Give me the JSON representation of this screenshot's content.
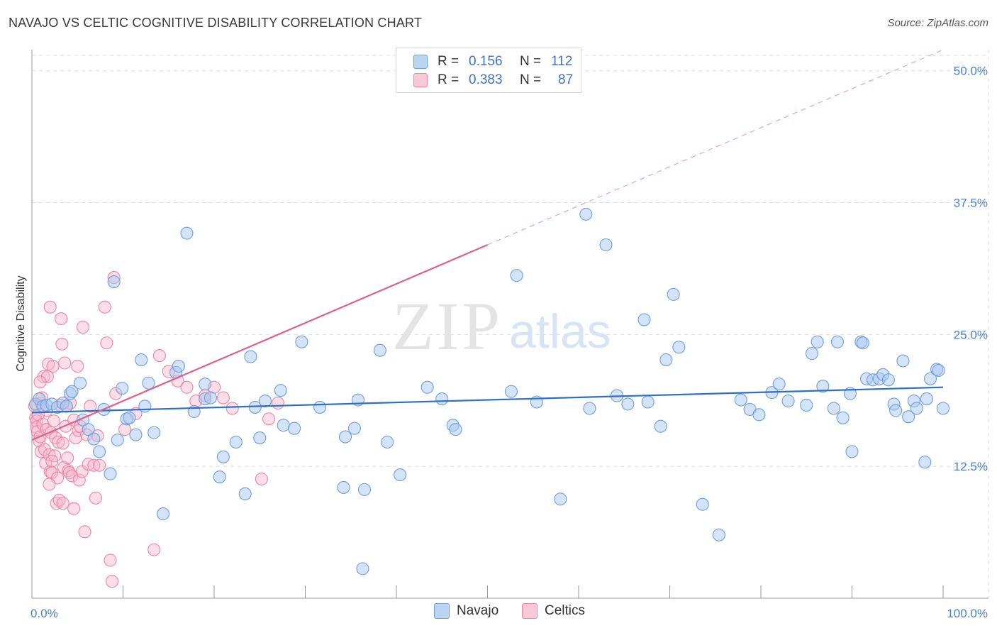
{
  "header": {
    "title": "NAVAJO VS CELTIC COGNITIVE DISABILITY CORRELATION CHART",
    "source": "Source: ZipAtlas.com"
  },
  "watermark": {
    "zip": "ZIP",
    "atlas": "atlas"
  },
  "legend": {
    "rows": [
      {
        "r_label": "R =",
        "r_value": "0.156",
        "n_label": "N =",
        "n_value": "112",
        "color": "#a9c8f0"
      },
      {
        "r_label": "R =",
        "r_value": "0.383",
        "n_label": "N =",
        "n_value": "87",
        "color": "#f6b6c9"
      }
    ]
  },
  "bottom_legend": [
    {
      "label": "Navajo",
      "color": "#a9c8f0"
    },
    {
      "label": "Celtics",
      "color": "#f6b6c9"
    }
  ],
  "colors": {
    "navajo_fill": "#a9c8f0",
    "navajo_stroke": "#6f9fdc",
    "navajo_line": "#2e6fcc",
    "celtics_fill": "#f6b6c9",
    "celtics_stroke": "#ea86a6",
    "celtics_line": "#e0608a",
    "grid": "#dddddd",
    "tick_text": "#4a7fc9"
  },
  "chart_data": {
    "type": "scatter",
    "title": "NAVAJO VS CELTIC COGNITIVE DISABILITY CORRELATION CHART",
    "xlabel": "",
    "ylabel": "Cognitive Disability",
    "xlim": [
      0,
      100
    ],
    "ylim": [
      0,
      52
    ],
    "x_tick_labels": [
      "0.0%",
      "100.0%"
    ],
    "y_ticks": [
      12.5,
      25.0,
      37.5,
      50.0
    ],
    "y_tick_labels": [
      "12.5%",
      "25.0%",
      "37.5%",
      "50.0%"
    ],
    "grid": true,
    "legend_position": "top-center",
    "series": [
      {
        "name": "Navajo",
        "trend": {
          "x": [
            0,
            100
          ],
          "y": [
            17.6,
            20.0
          ]
        },
        "points": [
          [
            0.4,
            18.4
          ],
          [
            0.8,
            18.9
          ],
          [
            1.2,
            18.2
          ],
          [
            1.6,
            18.3
          ],
          [
            2.2,
            18.4
          ],
          [
            2.8,
            18.1
          ],
          [
            3.4,
            18.5
          ],
          [
            3.8,
            18.2
          ],
          [
            4.2,
            19.4
          ],
          [
            4.4,
            19.6
          ],
          [
            5.3,
            20.4
          ],
          [
            5.6,
            16.9
          ],
          [
            6.2,
            16.0
          ],
          [
            6.8,
            15.1
          ],
          [
            7.4,
            13.9
          ],
          [
            7.9,
            17.9
          ],
          [
            8.6,
            11.8
          ],
          [
            9.0,
            30.0
          ],
          [
            9.4,
            15.0
          ],
          [
            9.9,
            19.9
          ],
          [
            10.4,
            17.0
          ],
          [
            10.7,
            17.1
          ],
          [
            11.4,
            15.5
          ],
          [
            12.0,
            22.6
          ],
          [
            12.4,
            18.2
          ],
          [
            12.8,
            20.4
          ],
          [
            13.4,
            15.7
          ],
          [
            14.4,
            8.0
          ],
          [
            15.8,
            21.4
          ],
          [
            16.1,
            22.0
          ],
          [
            17.0,
            34.6
          ],
          [
            17.8,
            17.7
          ],
          [
            19.0,
            20.3
          ],
          [
            19.0,
            18.9
          ],
          [
            19.6,
            19.0
          ],
          [
            20.6,
            11.5
          ],
          [
            21.0,
            13.4
          ],
          [
            22.4,
            14.8
          ],
          [
            23.4,
            9.9
          ],
          [
            24.0,
            22.9
          ],
          [
            24.5,
            18.1
          ],
          [
            25.0,
            15.2
          ],
          [
            25.6,
            18.7
          ],
          [
            27.3,
            19.7
          ],
          [
            27.6,
            16.4
          ],
          [
            28.8,
            16.1
          ],
          [
            29.6,
            24.3
          ],
          [
            31.6,
            18.1
          ],
          [
            34.2,
            10.5
          ],
          [
            34.4,
            15.3
          ],
          [
            35.4,
            16.1
          ],
          [
            35.8,
            18.8
          ],
          [
            36.3,
            2.8
          ],
          [
            36.5,
            10.3
          ],
          [
            38.2,
            23.5
          ],
          [
            39.0,
            14.8
          ],
          [
            40.4,
            11.7
          ],
          [
            43.4,
            20.0
          ],
          [
            45.0,
            18.9
          ],
          [
            46.2,
            16.4
          ],
          [
            46.5,
            16.0
          ],
          [
            52.6,
            19.6
          ],
          [
            53.2,
            30.6
          ],
          [
            55.4,
            18.6
          ],
          [
            58.0,
            9.4
          ],
          [
            60.8,
            36.4
          ],
          [
            61.2,
            18.0
          ],
          [
            63.0,
            33.5
          ],
          [
            64.2,
            19.2
          ],
          [
            65.4,
            18.4
          ],
          [
            67.2,
            26.4
          ],
          [
            67.6,
            18.6
          ],
          [
            69.0,
            16.3
          ],
          [
            69.6,
            22.6
          ],
          [
            70.4,
            28.8
          ],
          [
            71.0,
            23.8
          ],
          [
            73.6,
            8.9
          ],
          [
            75.4,
            6.0
          ],
          [
            77.8,
            18.8
          ],
          [
            78.8,
            17.9
          ],
          [
            79.8,
            17.4
          ],
          [
            81.2,
            19.5
          ],
          [
            82.0,
            20.3
          ],
          [
            83.0,
            18.7
          ],
          [
            85.0,
            18.3
          ],
          [
            85.6,
            23.2
          ],
          [
            86.2,
            24.3
          ],
          [
            86.8,
            20.1
          ],
          [
            88.0,
            18.0
          ],
          [
            88.4,
            24.3
          ],
          [
            89.0,
            17.1
          ],
          [
            89.8,
            19.4
          ],
          [
            90.0,
            13.9
          ],
          [
            91.0,
            24.3
          ],
          [
            91.2,
            24.2
          ],
          [
            91.6,
            20.8
          ],
          [
            92.3,
            20.7
          ],
          [
            93.0,
            20.8
          ],
          [
            93.4,
            21.2
          ],
          [
            94.0,
            20.7
          ],
          [
            94.6,
            18.4
          ],
          [
            94.8,
            17.8
          ],
          [
            95.6,
            22.5
          ],
          [
            96.2,
            17.2
          ],
          [
            96.8,
            18.7
          ],
          [
            97.1,
            18.0
          ],
          [
            98.0,
            12.9
          ],
          [
            98.2,
            18.9
          ],
          [
            98.6,
            20.8
          ],
          [
            99.3,
            21.7
          ],
          [
            99.5,
            21.6
          ],
          [
            100.0,
            18.0
          ]
        ]
      },
      {
        "name": "Celtics",
        "trend": {
          "x": [
            0,
            100
          ],
          "y": [
            15.0,
            52.0
          ],
          "solid_until_x": 50
        },
        "points": [
          [
            0.3,
            18.2
          ],
          [
            0.4,
            17.1
          ],
          [
            0.5,
            16.8
          ],
          [
            0.5,
            16.2
          ],
          [
            0.6,
            15.8
          ],
          [
            0.7,
            17.4
          ],
          [
            0.8,
            14.9
          ],
          [
            0.9,
            15.3
          ],
          [
            1.0,
            18.5
          ],
          [
            1.0,
            13.9
          ],
          [
            1.1,
            19.0
          ],
          [
            1.2,
            16.5
          ],
          [
            1.3,
            21.0
          ],
          [
            1.4,
            14.1
          ],
          [
            1.5,
            12.8
          ],
          [
            1.6,
            17.8
          ],
          [
            1.6,
            16.0
          ],
          [
            1.7,
            21.0
          ],
          [
            1.8,
            22.2
          ],
          [
            1.9,
            13.6
          ],
          [
            2.0,
            12.0
          ],
          [
            2.0,
            27.6
          ],
          [
            2.1,
            15.7
          ],
          [
            2.2,
            11.9
          ],
          [
            2.3,
            22.0
          ],
          [
            2.4,
            16.8
          ],
          [
            2.5,
            13.5
          ],
          [
            2.6,
            15.2
          ],
          [
            2.7,
            9.0
          ],
          [
            2.8,
            11.4
          ],
          [
            2.9,
            14.8
          ],
          [
            3.0,
            9.3
          ],
          [
            3.1,
            18.3
          ],
          [
            3.2,
            26.5
          ],
          [
            3.3,
            24.1
          ],
          [
            3.4,
            14.7
          ],
          [
            3.5,
            12.4
          ],
          [
            3.6,
            22.3
          ],
          [
            3.7,
            16.3
          ],
          [
            3.8,
            18.2
          ],
          [
            3.9,
            13.3
          ],
          [
            4.0,
            12.1
          ],
          [
            4.1,
            11.9
          ],
          [
            4.2,
            18.5
          ],
          [
            4.4,
            11.6
          ],
          [
            4.6,
            16.9
          ],
          [
            4.8,
            15.2
          ],
          [
            5.0,
            22.0
          ],
          [
            5.1,
            15.9
          ],
          [
            5.2,
            11.2
          ],
          [
            5.3,
            16.3
          ],
          [
            5.5,
            12.0
          ],
          [
            5.6,
            25.7
          ],
          [
            5.8,
            6.3
          ],
          [
            6.0,
            15.5
          ],
          [
            6.2,
            12.7
          ],
          [
            6.4,
            18.2
          ],
          [
            6.8,
            12.6
          ],
          [
            7.0,
            9.5
          ],
          [
            7.2,
            15.4
          ],
          [
            7.4,
            12.6
          ],
          [
            8.0,
            27.6
          ],
          [
            8.2,
            24.2
          ],
          [
            8.6,
            3.6
          ],
          [
            8.8,
            1.6
          ],
          [
            9.0,
            30.4
          ],
          [
            9.2,
            19.4
          ],
          [
            10.2,
            16.0
          ],
          [
            11.4,
            17.5
          ],
          [
            13.4,
            4.6
          ],
          [
            14.0,
            23.0
          ],
          [
            15.0,
            21.5
          ],
          [
            16.0,
            20.6
          ],
          [
            17.0,
            20.0
          ],
          [
            18.0,
            18.7
          ],
          [
            19.0,
            19.2
          ],
          [
            20.0,
            20.0
          ],
          [
            21.0,
            19.0
          ],
          [
            22.0,
            18.0
          ],
          [
            25.2,
            11.3
          ],
          [
            26.0,
            17.0
          ],
          [
            27.0,
            18.5
          ],
          [
            2.2,
            13.0
          ],
          [
            1.9,
            10.8
          ],
          [
            3.4,
            9.0
          ],
          [
            4.6,
            8.5
          ],
          [
            0.9,
            20.5
          ]
        ]
      }
    ]
  }
}
